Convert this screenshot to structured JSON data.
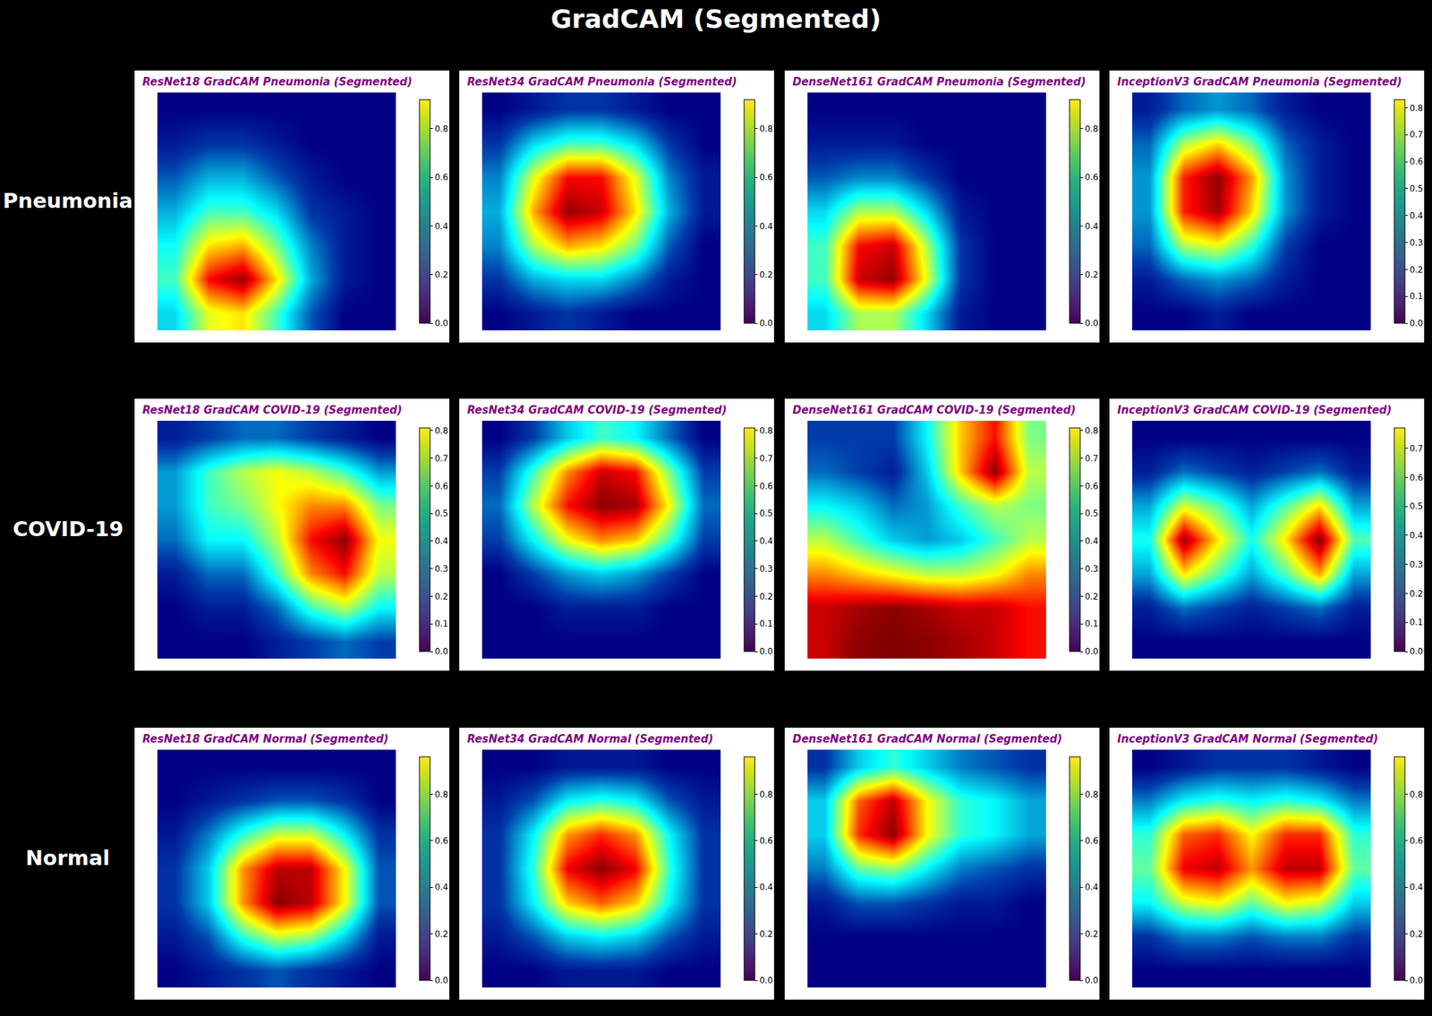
{
  "title": "GradCAM (Segmented)",
  "row_labels": [
    "Pneumonia",
    "COVID-19",
    "Normal"
  ],
  "chart_data": [
    {
      "type": "heatmap",
      "title": "ResNet18 GradCAM Pneumonia (Segmented)",
      "tick_labels": false,
      "z": [
        [
          0,
          0,
          0,
          0,
          0,
          0,
          0
        ],
        [
          0.05,
          0.1,
          0.1,
          0.05,
          0,
          0,
          0
        ],
        [
          0.15,
          0.25,
          0.25,
          0.15,
          0.05,
          0,
          0
        ],
        [
          0.25,
          0.4,
          0.4,
          0.3,
          0.1,
          0.05,
          0
        ],
        [
          0.35,
          0.6,
          0.65,
          0.45,
          0.2,
          0.05,
          0
        ],
        [
          0.4,
          0.8,
          0.9,
          0.6,
          0.25,
          0.05,
          0
        ],
        [
          0.3,
          0.55,
          0.6,
          0.4,
          0.15,
          0,
          0
        ]
      ],
      "colorbar_range": [
        0,
        0.92
      ],
      "colorbar_ticks": [
        {
          "value": 0,
          "label": "0.0"
        },
        {
          "value": 0.2,
          "label": "0.2"
        },
        {
          "value": 0.4,
          "label": "0.4"
        },
        {
          "value": 0.6,
          "label": "0.6"
        },
        {
          "value": 0.8,
          "label": "0.8"
        }
      ]
    },
    {
      "type": "heatmap",
      "title": "ResNet34 GradCAM Pneumonia (Segmented)",
      "tick_labels": false,
      "z": [
        [
          0,
          0.05,
          0.1,
          0.1,
          0.05,
          0,
          0
        ],
        [
          0.1,
          0.3,
          0.4,
          0.4,
          0.3,
          0.1,
          0
        ],
        [
          0.2,
          0.55,
          0.8,
          0.8,
          0.55,
          0.2,
          0.05
        ],
        [
          0.25,
          0.65,
          0.9,
          0.85,
          0.6,
          0.25,
          0.05
        ],
        [
          0.2,
          0.5,
          0.65,
          0.6,
          0.45,
          0.15,
          0
        ],
        [
          0.1,
          0.25,
          0.3,
          0.3,
          0.2,
          0.05,
          0
        ],
        [
          0,
          0.05,
          0.1,
          0.05,
          0,
          0,
          0
        ]
      ],
      "colorbar_range": [
        0,
        0.92
      ],
      "colorbar_ticks": [
        {
          "value": 0,
          "label": "0.0"
        },
        {
          "value": 0.2,
          "label": "0.2"
        },
        {
          "value": 0.4,
          "label": "0.4"
        },
        {
          "value": 0.6,
          "label": "0.6"
        },
        {
          "value": 0.8,
          "label": "0.8"
        }
      ]
    },
    {
      "type": "heatmap",
      "title": "DenseNet161 GradCAM Pneumonia (Segmented)",
      "tick_labels": false,
      "z": [
        [
          0,
          0,
          0,
          0,
          0,
          0,
          0
        ],
        [
          0.05,
          0.05,
          0.05,
          0,
          0,
          0,
          0
        ],
        [
          0.15,
          0.2,
          0.2,
          0.1,
          0,
          0,
          0
        ],
        [
          0.3,
          0.5,
          0.5,
          0.3,
          0.05,
          0,
          0
        ],
        [
          0.4,
          0.8,
          0.85,
          0.5,
          0.1,
          0,
          0
        ],
        [
          0.4,
          0.85,
          0.9,
          0.55,
          0.1,
          0,
          0
        ],
        [
          0.3,
          0.5,
          0.5,
          0.3,
          0.05,
          0,
          0
        ]
      ],
      "colorbar_range": [
        0,
        0.92
      ],
      "colorbar_ticks": [
        {
          "value": 0,
          "label": "0.0"
        },
        {
          "value": 0.2,
          "label": "0.2"
        },
        {
          "value": 0.4,
          "label": "0.4"
        },
        {
          "value": 0.6,
          "label": "0.6"
        },
        {
          "value": 0.8,
          "label": "0.8"
        }
      ]
    },
    {
      "type": "heatmap",
      "title": "InceptionV3 GradCAM Pneumonia (Segmented)",
      "tick_labels": false,
      "z": [
        [
          0.05,
          0.15,
          0.2,
          0.15,
          0.05,
          0,
          0
        ],
        [
          0.15,
          0.45,
          0.55,
          0.4,
          0.15,
          0.05,
          0
        ],
        [
          0.2,
          0.7,
          0.82,
          0.6,
          0.2,
          0.05,
          0
        ],
        [
          0.2,
          0.7,
          0.8,
          0.55,
          0.2,
          0.05,
          0
        ],
        [
          0.15,
          0.45,
          0.5,
          0.35,
          0.1,
          0,
          0
        ],
        [
          0.05,
          0.15,
          0.2,
          0.15,
          0.05,
          0,
          0
        ],
        [
          0,
          0,
          0.05,
          0,
          0,
          0,
          0
        ]
      ],
      "colorbar_range": [
        0,
        0.83
      ],
      "colorbar_ticks": [
        {
          "value": 0,
          "label": "0.0"
        },
        {
          "value": 0.1,
          "label": "0.1"
        },
        {
          "value": 0.2,
          "label": "0.2"
        },
        {
          "value": 0.3,
          "label": "0.3"
        },
        {
          "value": 0.4,
          "label": "0.4"
        },
        {
          "value": 0.5,
          "label": "0.5"
        },
        {
          "value": 0.6,
          "label": "0.6"
        },
        {
          "value": 0.7,
          "label": "0.7"
        },
        {
          "value": 0.8,
          "label": "0.8"
        }
      ]
    },
    {
      "type": "heatmap",
      "title": "ResNet18 GradCAM COVID-19 (Segmented)",
      "tick_labels": false,
      "z": [
        [
          0.05,
          0.1,
          0.15,
          0.15,
          0.1,
          0.05,
          0
        ],
        [
          0.2,
          0.35,
          0.45,
          0.5,
          0.45,
          0.35,
          0.2
        ],
        [
          0.2,
          0.35,
          0.4,
          0.5,
          0.6,
          0.6,
          0.4
        ],
        [
          0.15,
          0.3,
          0.3,
          0.45,
          0.7,
          0.8,
          0.5
        ],
        [
          0.05,
          0.15,
          0.15,
          0.35,
          0.6,
          0.7,
          0.45
        ],
        [
          0,
          0.05,
          0.05,
          0.15,
          0.35,
          0.45,
          0.3
        ],
        [
          0,
          0,
          0,
          0.05,
          0.1,
          0.15,
          0.1
        ]
      ],
      "colorbar_range": [
        0,
        0.81
      ],
      "colorbar_ticks": [
        {
          "value": 0,
          "label": "0.0"
        },
        {
          "value": 0.1,
          "label": "0.1"
        },
        {
          "value": 0.2,
          "label": "0.2"
        },
        {
          "value": 0.3,
          "label": "0.3"
        },
        {
          "value": 0.4,
          "label": "0.4"
        },
        {
          "value": 0.5,
          "label": "0.5"
        },
        {
          "value": 0.6,
          "label": "0.6"
        },
        {
          "value": 0.7,
          "label": "0.7"
        },
        {
          "value": 0.8,
          "label": "0.8"
        }
      ]
    },
    {
      "type": "heatmap",
      "title": "ResNet34 GradCAM COVID-19 (Segmented)",
      "tick_labels": false,
      "z": [
        [
          0,
          0.1,
          0.25,
          0.35,
          0.3,
          0.15,
          0
        ],
        [
          0.1,
          0.35,
          0.6,
          0.75,
          0.7,
          0.4,
          0.1
        ],
        [
          0.15,
          0.45,
          0.7,
          0.8,
          0.78,
          0.5,
          0.15
        ],
        [
          0.1,
          0.3,
          0.5,
          0.6,
          0.55,
          0.35,
          0.1
        ],
        [
          0,
          0.1,
          0.2,
          0.25,
          0.2,
          0.1,
          0
        ],
        [
          0,
          0,
          0.05,
          0.05,
          0.05,
          0,
          0
        ],
        [
          0,
          0,
          0,
          0,
          0,
          0,
          0
        ]
      ],
      "colorbar_range": [
        0,
        0.81
      ],
      "colorbar_ticks": [
        {
          "value": 0,
          "label": "0.0"
        },
        {
          "value": 0.1,
          "label": "0.1"
        },
        {
          "value": 0.2,
          "label": "0.2"
        },
        {
          "value": 0.3,
          "label": "0.3"
        },
        {
          "value": 0.4,
          "label": "0.4"
        },
        {
          "value": 0.5,
          "label": "0.5"
        },
        {
          "value": 0.6,
          "label": "0.6"
        },
        {
          "value": 0.7,
          "label": "0.7"
        },
        {
          "value": 0.8,
          "label": "0.8"
        }
      ]
    },
    {
      "type": "heatmap",
      "title": "DenseNet161 GradCAM COVID-19 (Segmented)",
      "tick_labels": false,
      "z": [
        [
          0.1,
          0.1,
          0.1,
          0.3,
          0.55,
          0.7,
          0.4
        ],
        [
          0.15,
          0.1,
          0.05,
          0.25,
          0.55,
          0.8,
          0.45
        ],
        [
          0.3,
          0.25,
          0.15,
          0.2,
          0.35,
          0.45,
          0.4
        ],
        [
          0.45,
          0.35,
          0.25,
          0.2,
          0.25,
          0.35,
          0.45
        ],
        [
          0.6,
          0.55,
          0.5,
          0.45,
          0.45,
          0.5,
          0.6
        ],
        [
          0.75,
          0.78,
          0.8,
          0.78,
          0.75,
          0.75,
          0.7
        ],
        [
          0.75,
          0.8,
          0.81,
          0.8,
          0.78,
          0.75,
          0.7
        ]
      ],
      "colorbar_range": [
        0,
        0.81
      ],
      "colorbar_ticks": [
        {
          "value": 0,
          "label": "0.0"
        },
        {
          "value": 0.1,
          "label": "0.1"
        },
        {
          "value": 0.2,
          "label": "0.2"
        },
        {
          "value": 0.3,
          "label": "0.3"
        },
        {
          "value": 0.4,
          "label": "0.4"
        },
        {
          "value": 0.5,
          "label": "0.5"
        },
        {
          "value": 0.6,
          "label": "0.6"
        },
        {
          "value": 0.7,
          "label": "0.7"
        },
        {
          "value": 0.8,
          "label": "0.8"
        }
      ]
    },
    {
      "type": "heatmap",
      "title": "InceptionV3 GradCAM COVID-19 (Segmented)",
      "tick_labels": false,
      "z": [
        [
          0,
          0,
          0,
          0,
          0,
          0,
          0
        ],
        [
          0.05,
          0.15,
          0.1,
          0.05,
          0.1,
          0.15,
          0.05
        ],
        [
          0.2,
          0.45,
          0.35,
          0.2,
          0.35,
          0.5,
          0.2
        ],
        [
          0.3,
          0.75,
          0.5,
          0.3,
          0.5,
          0.77,
          0.35
        ],
        [
          0.2,
          0.5,
          0.35,
          0.2,
          0.35,
          0.55,
          0.2
        ],
        [
          0.05,
          0.15,
          0.1,
          0.05,
          0.1,
          0.15,
          0.05
        ],
        [
          0,
          0,
          0,
          0,
          0,
          0,
          0
        ]
      ],
      "colorbar_range": [
        0,
        0.77
      ],
      "colorbar_ticks": [
        {
          "value": 0,
          "label": "0.0"
        },
        {
          "value": 0.1,
          "label": "0.1"
        },
        {
          "value": 0.2,
          "label": "0.2"
        },
        {
          "value": 0.3,
          "label": "0.3"
        },
        {
          "value": 0.4,
          "label": "0.4"
        },
        {
          "value": 0.5,
          "label": "0.5"
        },
        {
          "value": 0.6,
          "label": "0.6"
        },
        {
          "value": 0.7,
          "label": "0.7"
        }
      ]
    },
    {
      "type": "heatmap",
      "title": "ResNet18 GradCAM Normal (Segmented)",
      "tick_labels": false,
      "z": [
        [
          0,
          0,
          0,
          0,
          0,
          0,
          0
        ],
        [
          0,
          0.05,
          0.1,
          0.15,
          0.15,
          0.1,
          0
        ],
        [
          0.05,
          0.2,
          0.4,
          0.55,
          0.55,
          0.35,
          0.1
        ],
        [
          0.1,
          0.3,
          0.7,
          0.9,
          0.9,
          0.6,
          0.15
        ],
        [
          0.1,
          0.3,
          0.7,
          0.95,
          0.9,
          0.6,
          0.15
        ],
        [
          0.05,
          0.15,
          0.4,
          0.55,
          0.5,
          0.3,
          0.05
        ],
        [
          0,
          0.05,
          0.1,
          0.15,
          0.1,
          0.05,
          0
        ]
      ],
      "colorbar_range": [
        0,
        0.96
      ],
      "colorbar_ticks": [
        {
          "value": 0,
          "label": "0.0"
        },
        {
          "value": 0.2,
          "label": "0.2"
        },
        {
          "value": 0.4,
          "label": "0.4"
        },
        {
          "value": 0.6,
          "label": "0.6"
        },
        {
          "value": 0.8,
          "label": "0.8"
        }
      ]
    },
    {
      "type": "heatmap",
      "title": "ResNet34 GradCAM Normal (Segmented)",
      "tick_labels": false,
      "z": [
        [
          0,
          0,
          0.05,
          0.05,
          0.05,
          0,
          0
        ],
        [
          0.05,
          0.15,
          0.35,
          0.4,
          0.35,
          0.15,
          0.05
        ],
        [
          0.1,
          0.35,
          0.7,
          0.8,
          0.7,
          0.35,
          0.1
        ],
        [
          0.1,
          0.4,
          0.85,
          0.95,
          0.85,
          0.4,
          0.1
        ],
        [
          0.1,
          0.35,
          0.65,
          0.75,
          0.65,
          0.35,
          0.1
        ],
        [
          0.05,
          0.15,
          0.3,
          0.35,
          0.3,
          0.15,
          0.05
        ],
        [
          0,
          0,
          0.05,
          0.05,
          0.05,
          0,
          0
        ]
      ],
      "colorbar_range": [
        0,
        0.96
      ],
      "colorbar_ticks": [
        {
          "value": 0,
          "label": "0.0"
        },
        {
          "value": 0.2,
          "label": "0.2"
        },
        {
          "value": 0.4,
          "label": "0.4"
        },
        {
          "value": 0.6,
          "label": "0.6"
        },
        {
          "value": 0.8,
          "label": "0.8"
        }
      ]
    },
    {
      "type": "heatmap",
      "title": "DenseNet161 GradCAM Normal (Segmented)",
      "tick_labels": false,
      "z": [
        [
          0.1,
          0.3,
          0.4,
          0.3,
          0.2,
          0.15,
          0.1
        ],
        [
          0.3,
          0.75,
          0.9,
          0.6,
          0.4,
          0.35,
          0.25
        ],
        [
          0.3,
          0.8,
          0.95,
          0.6,
          0.4,
          0.35,
          0.25
        ],
        [
          0.2,
          0.45,
          0.5,
          0.35,
          0.2,
          0.15,
          0.1
        ],
        [
          0.05,
          0.15,
          0.15,
          0.1,
          0.05,
          0.05,
          0
        ],
        [
          0,
          0,
          0,
          0,
          0,
          0,
          0
        ],
        [
          0,
          0,
          0,
          0,
          0,
          0,
          0
        ]
      ],
      "colorbar_range": [
        0,
        0.96
      ],
      "colorbar_ticks": [
        {
          "value": 0,
          "label": "0.0"
        },
        {
          "value": 0.2,
          "label": "0.2"
        },
        {
          "value": 0.4,
          "label": "0.4"
        },
        {
          "value": 0.6,
          "label": "0.6"
        },
        {
          "value": 0.8,
          "label": "0.8"
        }
      ]
    },
    {
      "type": "heatmap",
      "title": "InceptionV3 GradCAM Normal (Segmented)",
      "tick_labels": false,
      "z": [
        [
          0,
          0.05,
          0.1,
          0.1,
          0.1,
          0.05,
          0
        ],
        [
          0.2,
          0.35,
          0.4,
          0.35,
          0.4,
          0.35,
          0.2
        ],
        [
          0.4,
          0.75,
          0.8,
          0.6,
          0.8,
          0.8,
          0.4
        ],
        [
          0.45,
          0.85,
          0.9,
          0.7,
          0.9,
          0.9,
          0.45
        ],
        [
          0.35,
          0.55,
          0.6,
          0.45,
          0.6,
          0.55,
          0.3
        ],
        [
          0.1,
          0.2,
          0.2,
          0.15,
          0.2,
          0.2,
          0.1
        ],
        [
          0,
          0,
          0,
          0,
          0,
          0,
          0
        ]
      ],
      "colorbar_range": [
        0,
        0.96
      ],
      "colorbar_ticks": [
        {
          "value": 0,
          "label": "0.0"
        },
        {
          "value": 0.2,
          "label": "0.2"
        },
        {
          "value": 0.4,
          "label": "0.4"
        },
        {
          "value": 0.6,
          "label": "0.6"
        },
        {
          "value": 0.8,
          "label": "0.8"
        }
      ]
    }
  ]
}
